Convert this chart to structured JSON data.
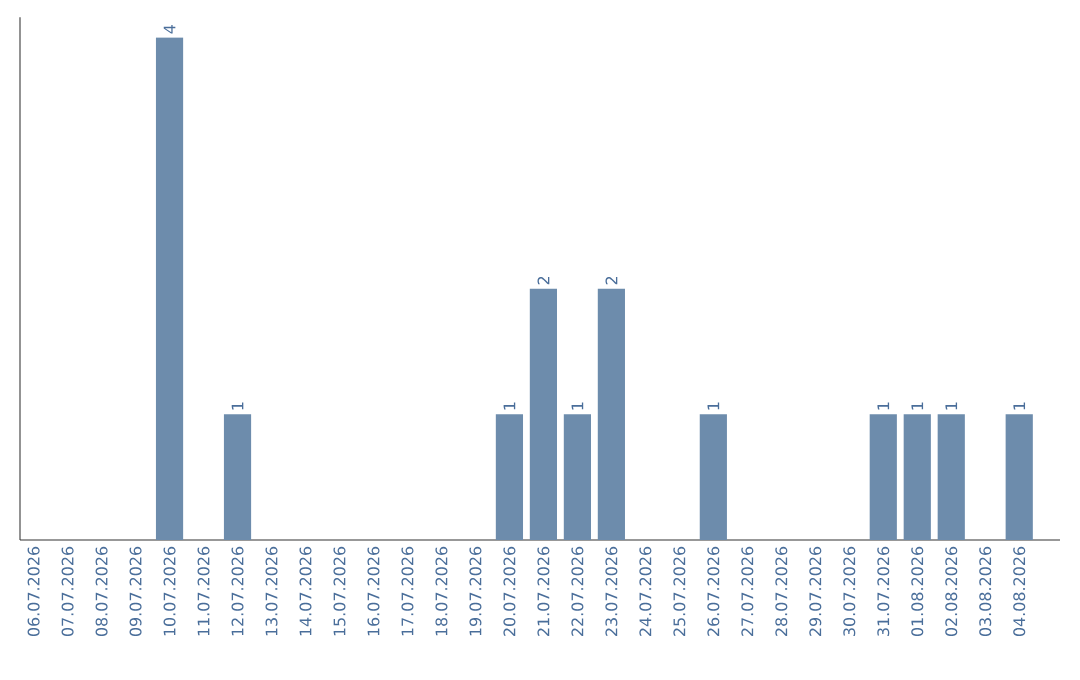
{
  "chart_data": {
    "type": "bar",
    "color": "#6d8cac",
    "categories": [
      "06.07.2026",
      "07.07.2026",
      "08.07.2026",
      "09.07.2026",
      "10.07.2026",
      "11.07.2026",
      "12.07.2026",
      "13.07.2026",
      "14.07.2026",
      "15.07.2026",
      "16.07.2026",
      "17.07.2026",
      "18.07.2026",
      "19.07.2026",
      "20.07.2026",
      "21.07.2026",
      "22.07.2026",
      "23.07.2026",
      "24.07.2026",
      "25.07.2026",
      "26.07.2026",
      "27.07.2026",
      "28.07.2026",
      "29.07.2026",
      "30.07.2026",
      "31.07.2026",
      "01.08.2026",
      "02.08.2026",
      "03.08.2026",
      "04.08.2026"
    ],
    "values": [
      0,
      0,
      0,
      0,
      4,
      0,
      1,
      0,
      0,
      0,
      0,
      0,
      0,
      0,
      1,
      2,
      1,
      2,
      0,
      0,
      1,
      0,
      0,
      0,
      0,
      1,
      1,
      1,
      0,
      1
    ],
    "value_labels": [
      null,
      null,
      null,
      null,
      "4",
      null,
      "1",
      null,
      null,
      null,
      null,
      null,
      null,
      null,
      "1",
      "2",
      "1",
      "2",
      null,
      null,
      "1",
      null,
      null,
      null,
      null,
      "1",
      "1",
      "1",
      null,
      "1"
    ]
  }
}
